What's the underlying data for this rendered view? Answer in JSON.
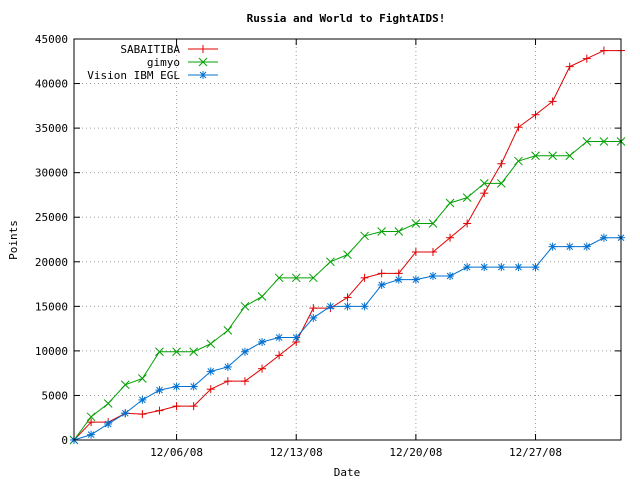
{
  "chart_data": {
    "type": "line",
    "title": "Russia and World to FightAIDS!",
    "xlabel": "Date",
    "ylabel": "Points",
    "ylim": [
      0,
      45000
    ],
    "yticks": [
      0,
      5000,
      10000,
      15000,
      20000,
      25000,
      30000,
      35000,
      40000,
      45000
    ],
    "ytick_labels": [
      "0",
      "5000",
      "10000",
      "15000",
      "20000",
      "25000",
      "30000",
      "35000",
      "40000",
      "45000"
    ],
    "xlim": [
      "11/30/08",
      "01/01/09"
    ],
    "xticks": [
      "12/06/08",
      "12/13/08",
      "12/20/08",
      "12/27/08"
    ],
    "grid": true,
    "legend_position": "top-left",
    "x": [
      "11/30/08",
      "12/01/08",
      "12/02/08",
      "12/03/08",
      "12/04/08",
      "12/05/08",
      "12/06/08",
      "12/07/08",
      "12/08/08",
      "12/09/08",
      "12/10/08",
      "12/11/08",
      "12/12/08",
      "12/13/08",
      "12/14/08",
      "12/15/08",
      "12/16/08",
      "12/17/08",
      "12/18/08",
      "12/19/08",
      "12/20/08",
      "12/21/08",
      "12/22/08",
      "12/23/08",
      "12/24/08",
      "12/25/08",
      "12/26/08",
      "12/27/08",
      "12/28/08",
      "12/29/08",
      "12/30/08",
      "12/31/08",
      "01/01/09"
    ],
    "series": [
      {
        "name": "SABAITIBA",
        "color": "#e00000",
        "marker": "plus",
        "values": [
          0,
          2000,
          2000,
          3000,
          2900,
          3300,
          3800,
          3800,
          5700,
          6600,
          6600,
          8000,
          9500,
          11000,
          14800,
          14800,
          16000,
          18200,
          18700,
          18700,
          21100,
          21100,
          22700,
          24300,
          27700,
          31000,
          35100,
          36500,
          38000,
          41900,
          42800,
          43700,
          43700
        ]
      },
      {
        "name": "gimyo",
        "color": "#00a000",
        "marker": "x",
        "values": [
          0,
          2600,
          4100,
          6200,
          6900,
          9900,
          9900,
          9900,
          10800,
          12300,
          15000,
          16100,
          18200,
          18200,
          18200,
          20000,
          20800,
          22900,
          23400,
          23400,
          24300,
          24300,
          26600,
          27200,
          28800,
          28800,
          31300,
          31900,
          31900,
          31900,
          33500,
          33500,
          33500
        ]
      },
      {
        "name": "Vision IBM EGL",
        "color": "#0070d0",
        "marker": "star",
        "values": [
          0,
          600,
          1800,
          3000,
          4500,
          5600,
          6000,
          6000,
          7700,
          8200,
          9900,
          11000,
          11500,
          11500,
          13700,
          15000,
          15000,
          15000,
          17400,
          18000,
          18000,
          18400,
          18400,
          19400,
          19400,
          19400,
          19400,
          19400,
          21700,
          21700,
          21700,
          22700,
          22700
        ]
      }
    ]
  }
}
